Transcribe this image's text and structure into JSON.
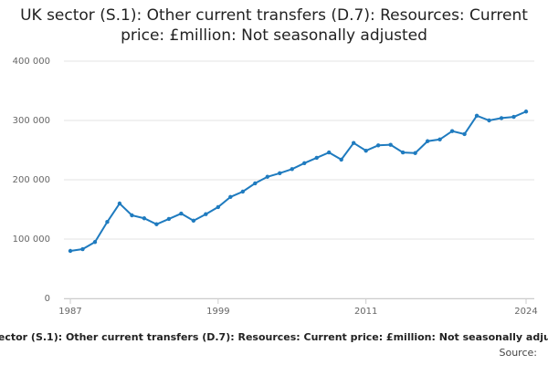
{
  "chart_data": {
    "type": "line",
    "title": "UK sector (S.1): Other current transfers (D.7): Resources: Current price: £million: Not seasonally adjusted",
    "x": [
      1987,
      1988,
      1989,
      1990,
      1991,
      1992,
      1993,
      1994,
      1995,
      1996,
      1997,
      1998,
      1999,
      2000,
      2001,
      2002,
      2003,
      2004,
      2005,
      2006,
      2007,
      2008,
      2009,
      2010,
      2011,
      2012,
      2013,
      2014,
      2015,
      2016,
      2017,
      2018,
      2019,
      2020,
      2021,
      2022,
      2023,
      2024
    ],
    "series": [
      {
        "name": "UK sector (S.1): Other current transfers (D.7): Resources: Current price: £million: Not seasonally adjusted",
        "color": "#1f7bbf",
        "values": [
          80000,
          83000,
          95000,
          129000,
          160000,
          140000,
          135000,
          125000,
          134000,
          143000,
          131000,
          142000,
          154000,
          171000,
          180000,
          194000,
          205000,
          211000,
          218000,
          228000,
          237000,
          246000,
          234000,
          262000,
          249000,
          258000,
          259000,
          246000,
          245000,
          265000,
          268000,
          282000,
          277000,
          308000,
          300000,
          304000,
          306000,
          315000
        ]
      }
    ],
    "xlim": [
      1987,
      2024
    ],
    "xticks": [
      1987,
      1999,
      2011,
      2024
    ],
    "ylim": [
      0,
      400000
    ],
    "yticks": [
      0,
      {
        "value": 100000,
        "label": "100 000"
      },
      {
        "value": 200000,
        "label": "200 000"
      },
      {
        "value": 300000,
        "label": "300 000"
      },
      {
        "value": 400000,
        "label": "400 000"
      }
    ],
    "grid": true,
    "source": "Source:"
  }
}
